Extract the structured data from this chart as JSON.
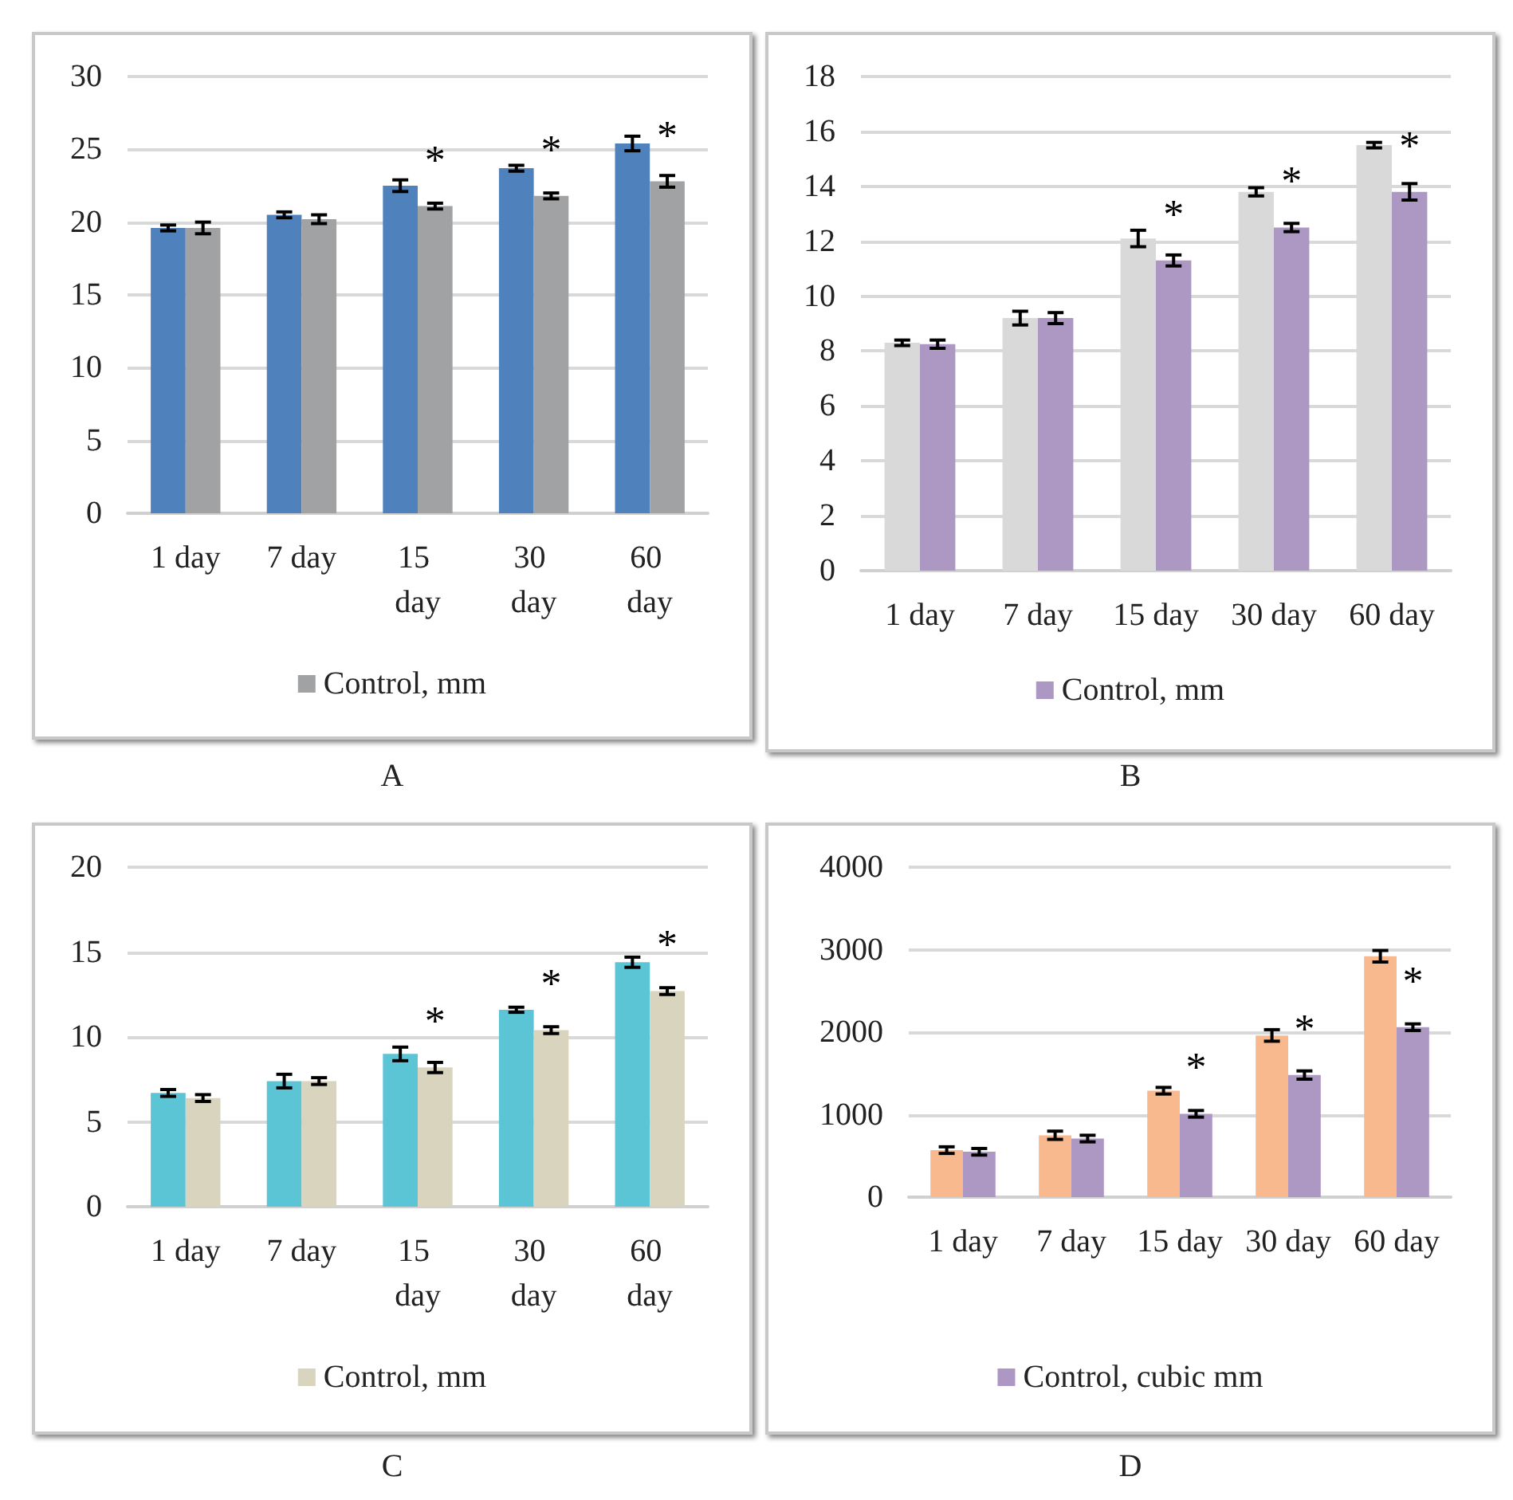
{
  "chart_data": [
    {
      "type": "bar",
      "title": "A",
      "categories": [
        "1 day",
        "7 day",
        "15 day",
        "30 day",
        "60 day"
      ],
      "ylim": [
        0,
        30
      ],
      "yticks": [
        0,
        5,
        10,
        15,
        20,
        25,
        30
      ],
      "grid": "y",
      "legend": "bottom",
      "series": [
        {
          "color": "#4f81bd",
          "values": [
            19.6,
            20.5,
            22.5,
            23.7,
            25.4
          ],
          "errors": [
            0.2,
            0.2,
            0.4,
            0.2,
            0.5
          ]
        },
        {
          "name": "Control, mm",
          "color": "#a0a2a3",
          "values": [
            19.6,
            20.2,
            21.1,
            21.8,
            22.8
          ],
          "errors": [
            0.4,
            0.3,
            0.2,
            0.2,
            0.4
          ]
        }
      ],
      "annotations": [
        {
          "text": "*",
          "x": "15 day",
          "y": 21.1
        },
        {
          "text": "*",
          "x": "30 day",
          "y": 21.8
        },
        {
          "text": "*",
          "x": "60 day",
          "y": 22.8
        }
      ]
    },
    {
      "type": "bar",
      "title": "B",
      "categories": [
        "1 day",
        "7 day",
        "15 day",
        "30 day",
        "60 day"
      ],
      "ylim": [
        0,
        18
      ],
      "yticks": [
        0,
        2,
        4,
        6,
        8,
        10,
        12,
        14,
        16,
        18
      ],
      "grid": "y",
      "legend": "bottom",
      "series": [
        {
          "color": "#d9d9d9",
          "values": [
            8.3,
            9.2,
            12.1,
            13.8,
            15.5
          ],
          "errors": [
            0.1,
            0.25,
            0.3,
            0.15,
            0.1
          ]
        },
        {
          "name": "Control, mm",
          "color": "#ad97c3",
          "values": [
            8.25,
            9.2,
            11.3,
            12.5,
            13.8
          ],
          "errors": [
            0.15,
            0.2,
            0.2,
            0.15,
            0.3
          ]
        }
      ],
      "annotations": [
        {
          "text": "*",
          "x": "15 day",
          "y": 11.3
        },
        {
          "text": "*",
          "x": "30 day",
          "y": 12.5
        },
        {
          "text": "*",
          "x": "60 day",
          "y": 13.8
        }
      ]
    },
    {
      "type": "bar",
      "title": "C",
      "categories": [
        "1 day",
        "7 day",
        "15 day",
        "30 day",
        "60 day"
      ],
      "ylim": [
        0,
        20
      ],
      "yticks": [
        0,
        5,
        10,
        15,
        20
      ],
      "grid": "y",
      "legend": "bottom",
      "series": [
        {
          "color": "#5bc5d6",
          "values": [
            6.7,
            7.4,
            9.0,
            11.6,
            14.4
          ],
          "errors": [
            0.2,
            0.4,
            0.4,
            0.15,
            0.3
          ]
        },
        {
          "name": "Control, mm",
          "color": "#d8d4bd",
          "values": [
            6.4,
            7.4,
            8.2,
            10.4,
            12.7
          ],
          "errors": [
            0.2,
            0.2,
            0.3,
            0.2,
            0.2
          ]
        }
      ],
      "annotations": [
        {
          "text": "*",
          "x": "15 day",
          "y": 8.2
        },
        {
          "text": "*",
          "x": "30 day",
          "y": 10.4
        },
        {
          "text": "*",
          "x": "60 day",
          "y": 12.7
        }
      ]
    },
    {
      "type": "bar",
      "title": "D",
      "categories": [
        "1 day",
        "7 day",
        "15 day",
        "30 day",
        "60 day"
      ],
      "ylim": [
        0,
        4000
      ],
      "yticks": [
        0,
        1000,
        2000,
        3000,
        4000
      ],
      "grid": "y",
      "legend": "bottom",
      "series": [
        {
          "color": "#f9b98e",
          "values": [
            570,
            750,
            1290,
            1960,
            2920
          ],
          "errors": [
            40,
            50,
            40,
            70,
            70
          ]
        },
        {
          "name": "Control, cubic mm",
          "color": "#ad97c3",
          "values": [
            550,
            710,
            1010,
            1480,
            2060
          ],
          "errors": [
            40,
            40,
            40,
            50,
            40
          ]
        }
      ],
      "annotations": [
        {
          "text": "*",
          "x": "15 day",
          "y": 1010
        },
        {
          "text": "*",
          "x": "30 day",
          "y": 1480
        },
        {
          "text": "*",
          "x": "60 day",
          "y": 2060
        }
      ]
    }
  ]
}
